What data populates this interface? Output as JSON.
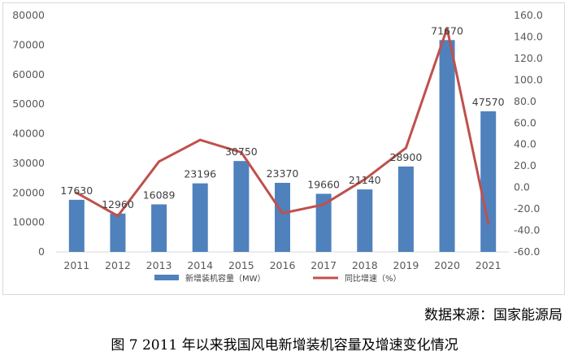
{
  "chart_data": {
    "type": "bar+line",
    "categories": [
      "2011",
      "2012",
      "2013",
      "2014",
      "2015",
      "2016",
      "2017",
      "2018",
      "2019",
      "2020",
      "2021"
    ],
    "series": [
      {
        "name": "新增装机容量（MW）",
        "type": "bar",
        "axis": "left",
        "values": [
          17630,
          12960,
          16089,
          23196,
          30750,
          23370,
          19660,
          21140,
          28900,
          71670,
          47570
        ],
        "labels": [
          "17630",
          "12960",
          "16089",
          "23196",
          "30750",
          "23370",
          "19660",
          "21140",
          "28900",
          "71670",
          "47570"
        ],
        "color": "#4f81bd"
      },
      {
        "name": "同比增速（%）",
        "type": "line",
        "axis": "right",
        "values": [
          -5.0,
          -26.5,
          24.1,
          44.2,
          32.6,
          -24.0,
          -15.9,
          7.5,
          36.7,
          148.0,
          -33.6
        ],
        "color": "#c0504d"
      }
    ],
    "left_axis": {
      "min": 0,
      "max": 80000,
      "step": 10000,
      "ticks": [
        "0",
        "10000",
        "20000",
        "30000",
        "40000",
        "50000",
        "60000",
        "70000",
        "80000"
      ]
    },
    "right_axis": {
      "min": -60,
      "max": 160,
      "step": 20,
      "ticks": [
        "-60.0",
        "-40.0",
        "-20.0",
        "0.0",
        "20.0",
        "40.0",
        "60.0",
        "80.0",
        "100.0",
        "120.0",
        "140.0",
        "160.0"
      ]
    },
    "grid": false,
    "legend": "bottom-center"
  },
  "source_note": "数据来源：国家能源局",
  "caption": "图 7   2011 年以来我国风电新增装机容量及增速变化情况"
}
